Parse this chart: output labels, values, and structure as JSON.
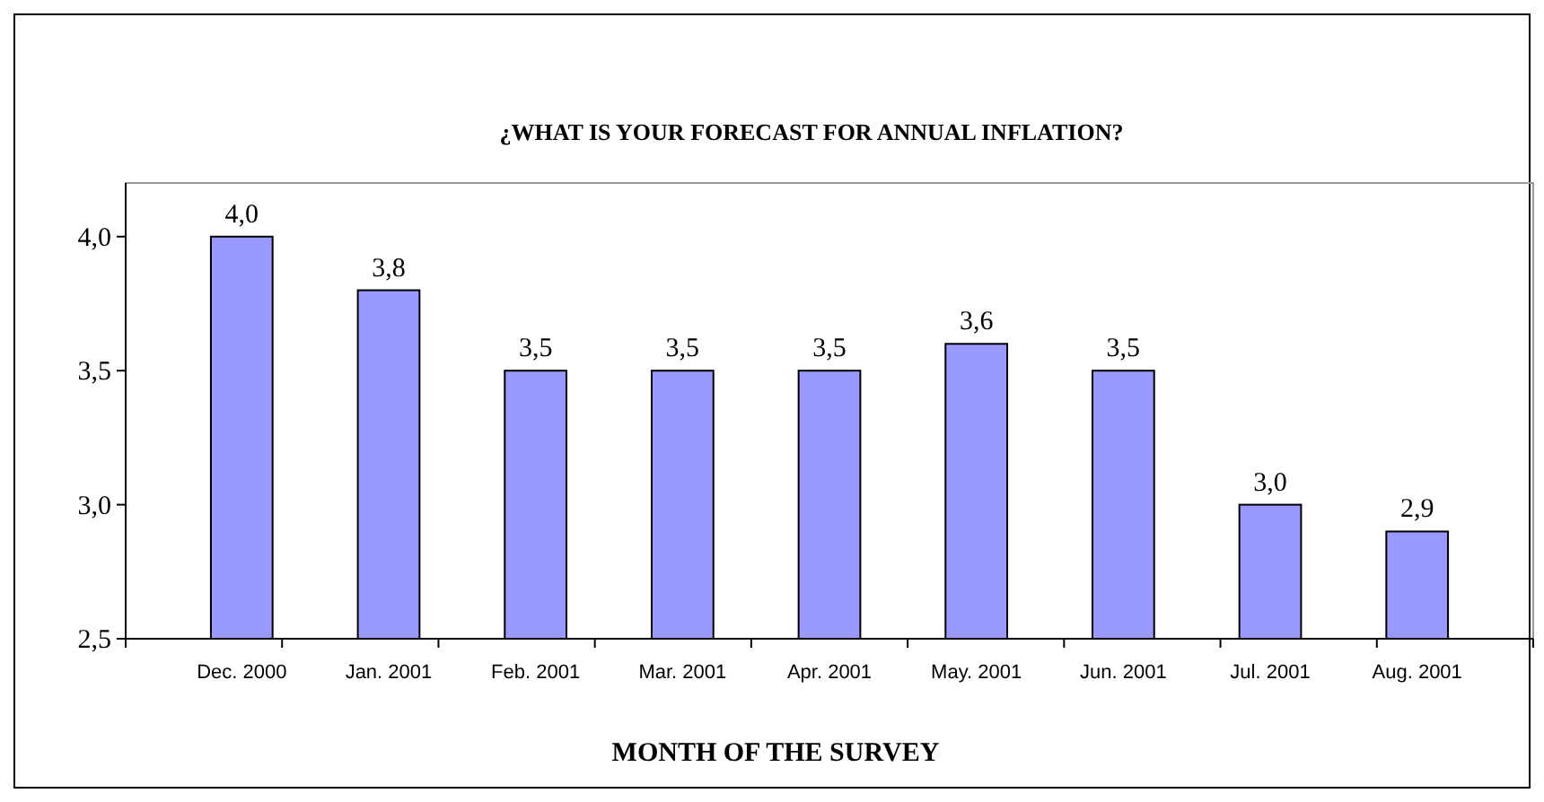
{
  "chart_data": {
    "type": "bar",
    "title": "¿WHAT IS YOUR FORECAST FOR ANNUAL INFLATION?",
    "xlabel": "MONTH OF THE SURVEY",
    "categories": [
      "Dec. 2000",
      "Jan. 2001",
      "Feb. 2001",
      "Mar. 2001",
      "Apr. 2001",
      "May. 2001",
      "Jun. 2001",
      "Jul. 2001",
      "Aug. 2001"
    ],
    "values": [
      4.0,
      3.8,
      3.5,
      3.5,
      3.5,
      3.6,
      3.5,
      3.0,
      2.9
    ],
    "value_labels": [
      "4,0",
      "3,8",
      "3,5",
      "3,5",
      "3,5",
      "3,6",
      "3,5",
      "3,0",
      "2,9"
    ],
    "color": "#9999ff",
    "ylim": [
      2.5,
      4.2
    ],
    "yticks": [
      {
        "value": 2.5,
        "label": "2,5"
      },
      {
        "value": 3,
        "label": "3,0"
      },
      {
        "value": 3.5,
        "label": "3,5"
      },
      {
        "value": 4,
        "label": "4,0"
      }
    ],
    "grid": false
  }
}
